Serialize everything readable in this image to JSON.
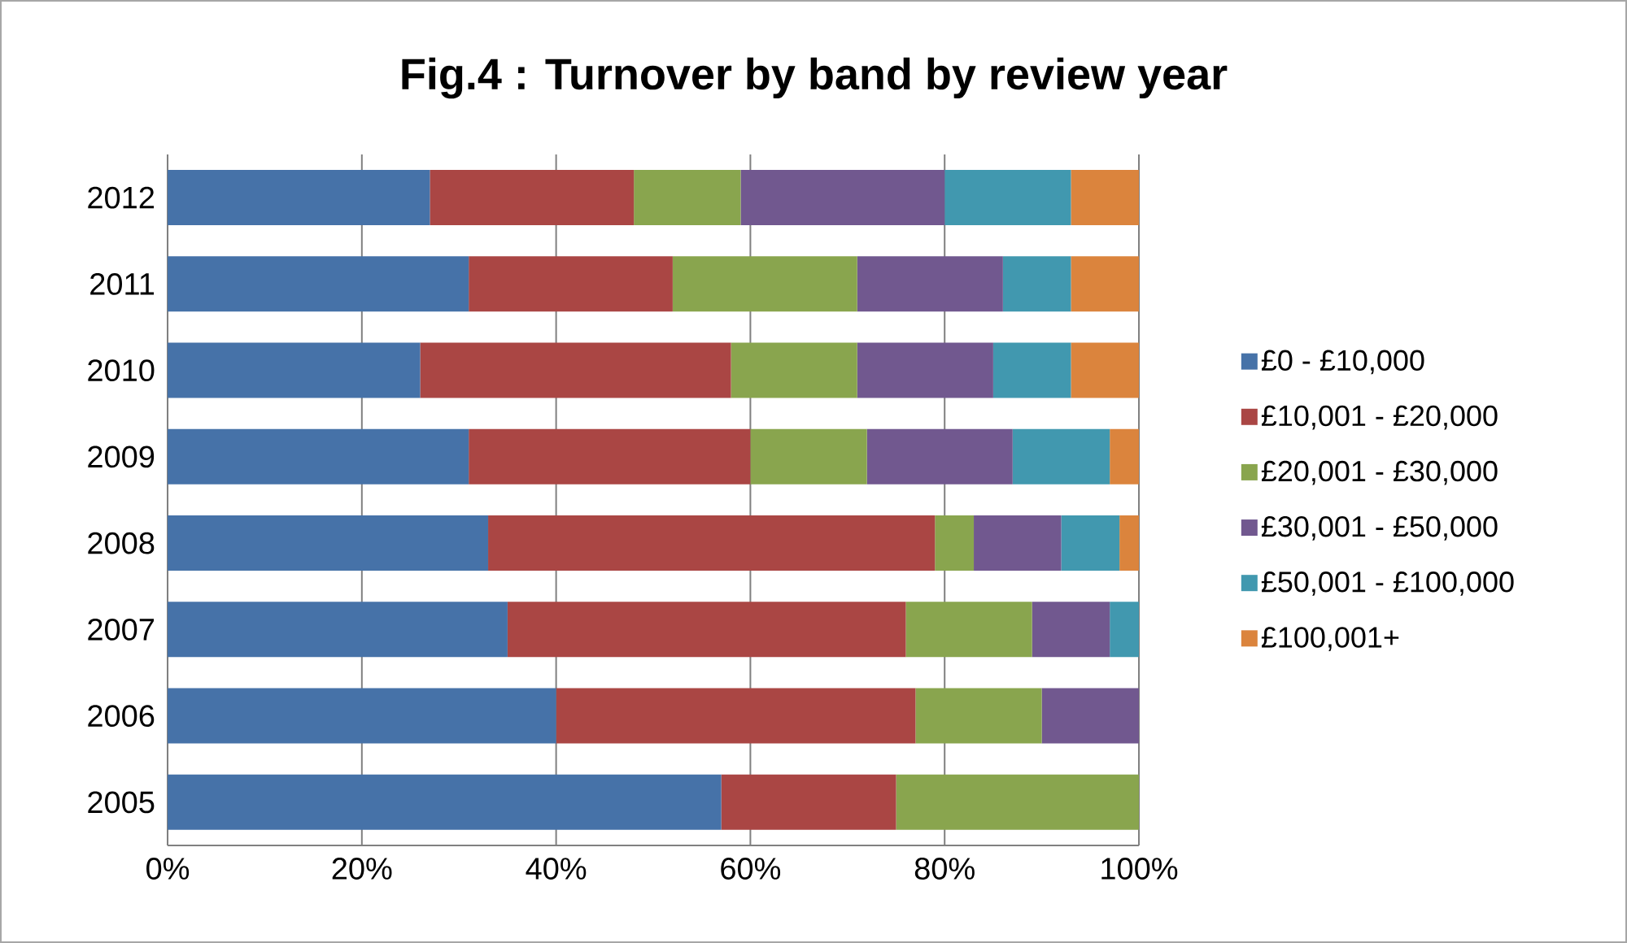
{
  "chart_data": {
    "type": "bar",
    "orientation": "horizontal",
    "stacked": true,
    "title": "Fig.4 : Turnover by band by review year",
    "categories": [
      "2012",
      "2011",
      "2010",
      "2009",
      "2008",
      "2007",
      "2006",
      "2005"
    ],
    "series": [
      {
        "name": "£0 - £10,000",
        "color": "#4672a8",
        "values": [
          27,
          31,
          26,
          31,
          33,
          35,
          40,
          57
        ]
      },
      {
        "name": "£10,001 - £20,000",
        "color": "#aa4644",
        "values": [
          21,
          21,
          32,
          29,
          46,
          41,
          37,
          18
        ]
      },
      {
        "name": "£20,001 - £30,000",
        "color": "#89a54e",
        "values": [
          11,
          19,
          13,
          12,
          4,
          13,
          13,
          25
        ]
      },
      {
        "name": "£30,001 - £50,000",
        "color": "#71588f",
        "values": [
          21,
          15,
          14,
          15,
          9,
          8,
          10,
          0
        ]
      },
      {
        "name": "£50,001 - £100,000",
        "color": "#4198af",
        "values": [
          13,
          7,
          8,
          10,
          6,
          3,
          0,
          0
        ]
      },
      {
        "name": "£100,001+",
        "color": "#db843d",
        "values": [
          7,
          7,
          7,
          3,
          2,
          0,
          0,
          0
        ]
      }
    ],
    "xlim": [
      0,
      100
    ],
    "xticks": [
      {
        "value": 0,
        "label": "0%"
      },
      {
        "value": 20,
        "label": "20%"
      },
      {
        "value": 40,
        "label": "40%"
      },
      {
        "value": 60,
        "label": "60%"
      },
      {
        "value": 80,
        "label": "80%"
      },
      {
        "value": 100,
        "label": "100%"
      }
    ],
    "grid": "x",
    "legend": "right"
  }
}
